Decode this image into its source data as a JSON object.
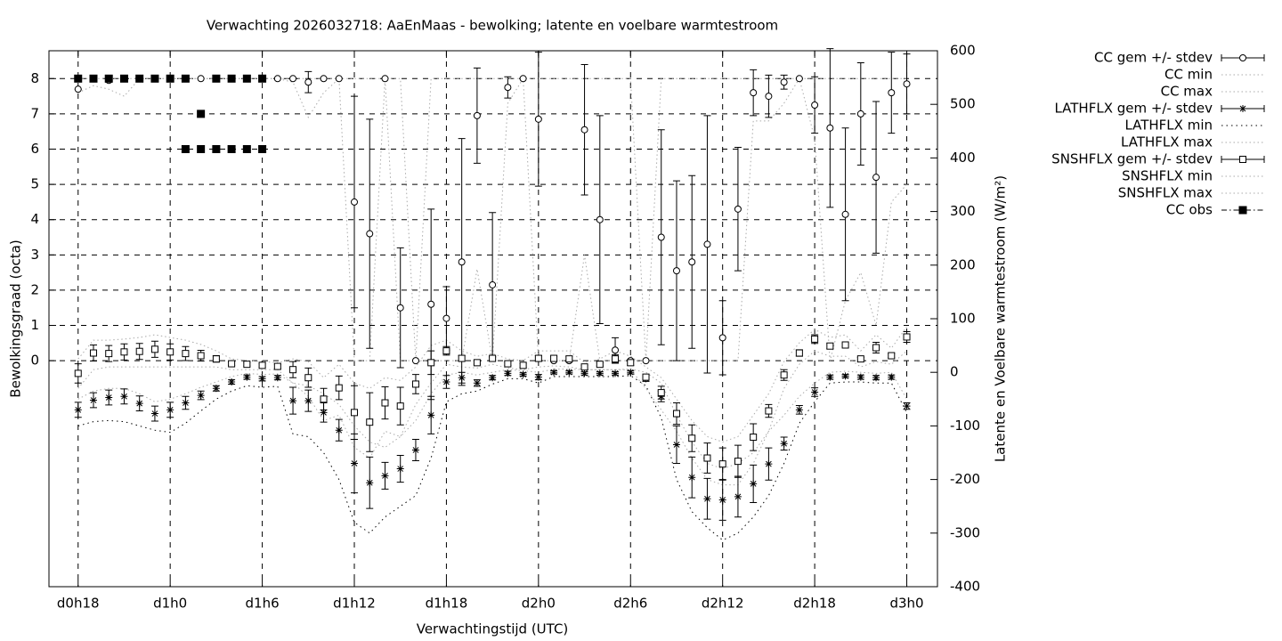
{
  "chart_data": {
    "type": "errorbar",
    "title": "Verwachting 2026032718: AaEnMaas - bewolking; latente en voelbare warmtestroom",
    "xlabel": "Verwachtingstijd (UTC)",
    "ylabel": "Bewolkingsgraad (octa)",
    "y2label": "Latente en Voelbare warmtestroom (W/m²)",
    "xlim": [
      -1.9,
      56
    ],
    "xticks": [
      {
        "value": 0,
        "label": "d0h18"
      },
      {
        "value": 6,
        "label": "d1h0"
      },
      {
        "value": 12,
        "label": "d1h6"
      },
      {
        "value": 18,
        "label": "d1h12"
      },
      {
        "value": 24,
        "label": "d1h18"
      },
      {
        "value": 30,
        "label": "d2h0"
      },
      {
        "value": 36,
        "label": "d2h6"
      },
      {
        "value": 42,
        "label": "d2h12"
      },
      {
        "value": 48,
        "label": "d2h18"
      },
      {
        "value": 54,
        "label": "d3h0"
      }
    ],
    "ylim": [
      -6.41,
      8.79
    ],
    "yticks": [
      0,
      1,
      2,
      3,
      4,
      5,
      6,
      7,
      8
    ],
    "y2lim": [
      -400,
      600
    ],
    "y2ticks": [
      -400,
      -300,
      -200,
      -100,
      0,
      100,
      200,
      300,
      400,
      500,
      600
    ],
    "grid": true,
    "legend": "outside-top-right",
    "x": [
      0,
      1,
      2,
      3,
      4,
      5,
      6,
      7,
      8,
      9,
      10,
      11,
      12,
      13,
      14,
      15,
      16,
      17,
      18,
      19,
      20,
      21,
      22,
      23,
      24,
      25,
      26,
      27,
      28,
      29,
      30,
      31,
      32,
      33,
      34,
      35,
      36,
      37,
      38,
      39,
      40,
      41,
      42,
      43,
      44,
      45,
      46,
      47,
      48,
      49,
      50,
      51,
      52,
      53,
      54
    ],
    "series": [
      {
        "name": "CC gem +/- stdev",
        "color": "#000000",
        "style": "errorbar",
        "marker": "circle",
        "values": [
          7.7,
          8,
          7.95,
          8,
          8,
          8,
          8,
          8,
          8,
          8,
          8,
          8,
          8,
          8,
          8,
          7.9,
          8,
          8,
          4.5,
          3.6,
          8,
          1.5,
          0,
          1.6,
          1.2,
          2.8,
          6.95,
          2.15,
          7.75,
          8,
          6.85,
          0,
          0,
          6.55,
          4.0,
          0.3,
          0,
          0,
          3.5,
          2.55,
          2.8,
          3.3,
          0.65,
          4.3,
          7.6,
          7.5,
          7.9,
          8,
          7.25,
          6.6,
          4.15,
          7.0,
          5.2,
          7.6,
          7.85
        ],
        "errors": [
          0,
          0,
          0.05,
          0,
          0,
          0,
          0,
          0,
          0,
          0,
          0,
          0,
          0,
          0,
          0,
          0.3,
          0,
          0,
          3,
          3.25,
          0,
          1.7,
          0,
          2.7,
          0.9,
          3.5,
          1.35,
          2.05,
          0.3,
          0,
          1.9,
          0,
          0,
          1.85,
          2.95,
          0.35,
          0,
          0,
          3.05,
          2.55,
          2.45,
          3.65,
          1.05,
          1.75,
          0.65,
          0.6,
          0.2,
          0,
          0.8,
          2.25,
          2.45,
          1.45,
          2.15,
          1.15,
          0.85
        ]
      },
      {
        "name": "CC min",
        "color": "#aaaaaa",
        "style": "dotted",
        "values": [
          7.6,
          7.8,
          7.7,
          7.5,
          8,
          8,
          8,
          8,
          8,
          8,
          8,
          8,
          8,
          8,
          7.9,
          6.9,
          7.6,
          8,
          0,
          0,
          8,
          0,
          0,
          0,
          0,
          0,
          2.6,
          0,
          7.3,
          8,
          0,
          0,
          0,
          3,
          0,
          0,
          0,
          0,
          0,
          0,
          0,
          0,
          0,
          0,
          6.8,
          6.8,
          7.3,
          8,
          6.3,
          0,
          1.7,
          2.5,
          1,
          4.5,
          5
        ]
      },
      {
        "name": "CC max",
        "color": "#aaaaaa",
        "style": "dotted",
        "values": [
          8,
          8,
          8,
          8,
          8,
          8,
          8,
          8,
          8,
          8,
          8,
          8,
          8,
          8,
          8,
          8,
          8,
          8,
          8,
          8,
          8,
          8,
          0,
          8,
          8,
          8,
          8,
          8,
          8,
          8,
          8,
          8,
          8,
          8,
          8,
          8,
          8,
          0,
          8,
          8,
          8,
          8,
          8,
          8,
          8,
          8,
          8,
          8,
          8,
          8,
          8,
          8,
          8,
          8,
          8
        ]
      },
      {
        "name": "LATHFLX gem +/- stdev",
        "color": "#000000",
        "style": "errorbar",
        "marker": "asterisk",
        "axis": "y2",
        "values": [
          -70,
          -52,
          -47,
          -45,
          -58,
          -77,
          -70,
          -57,
          -43,
          -30,
          -18,
          -9,
          -12,
          -10,
          -53,
          -53,
          -75,
          -108,
          -170,
          -206,
          -193,
          -180,
          -145,
          -80,
          -18,
          -10,
          -20,
          -10,
          -2,
          -4,
          -9,
          0,
          0,
          -2,
          -2,
          -2,
          0,
          -12,
          -45,
          -135,
          -196,
          -236,
          -238,
          -232,
          -208,
          -171,
          -133,
          -70,
          -37,
          -9,
          -7,
          -9,
          -10,
          -9,
          -63
        ],
        "errors": [
          14,
          14,
          14,
          14,
          14,
          14,
          14,
          12,
          8,
          5,
          4,
          4,
          4,
          4,
          25,
          20,
          18,
          20,
          55,
          48,
          25,
          25,
          20,
          35,
          12,
          10,
          6,
          4,
          4,
          3,
          5,
          3,
          3,
          3,
          3,
          3,
          3,
          5,
          10,
          35,
          38,
          38,
          38,
          38,
          35,
          30,
          12,
          8,
          8,
          4,
          3,
          4,
          4,
          4,
          6
        ]
      },
      {
        "name": "LATHFLX min",
        "color": "#000000",
        "style": "dotted",
        "axis": "y2",
        "values": [
          -100,
          -92,
          -90,
          -92,
          -100,
          -108,
          -112,
          -95,
          -72,
          -50,
          -35,
          -25,
          -28,
          -26,
          -115,
          -120,
          -150,
          -200,
          -280,
          -300,
          -270,
          -250,
          -230,
          -160,
          -55,
          -40,
          -35,
          -22,
          -12,
          -12,
          -20,
          -8,
          -8,
          -8,
          -8,
          -8,
          -6,
          -25,
          -85,
          -200,
          -260,
          -290,
          -313,
          -300,
          -270,
          -230,
          -170,
          -95,
          -55,
          -20,
          -18,
          -18,
          -20,
          -20,
          -75
        ]
      },
      {
        "name": "LATHFLX max",
        "color": "#aaaaaa",
        "style": "dotted",
        "axis": "y2",
        "values": [
          -50,
          -35,
          -30,
          -30,
          -40,
          -55,
          -50,
          -40,
          -28,
          -18,
          -8,
          -2,
          -4,
          -3,
          -20,
          -25,
          -40,
          -60,
          -100,
          -130,
          -140,
          -120,
          -90,
          -40,
          -5,
          0,
          -5,
          0,
          5,
          3,
          0,
          6,
          6,
          5,
          5,
          5,
          6,
          0,
          -20,
          -80,
          -130,
          -170,
          -180,
          -170,
          -150,
          -110,
          -80,
          -45,
          -20,
          0,
          2,
          0,
          -2,
          0,
          -50
        ]
      },
      {
        "name": "SNSHFLX gem +/- stdev",
        "color": "#000000",
        "style": "errorbar",
        "marker": "square",
        "axis": "y2",
        "values": [
          -2,
          36,
          35,
          38,
          39,
          43,
          38,
          35,
          31,
          25,
          16,
          15,
          13,
          11,
          5,
          -10,
          -50,
          -29,
          -75,
          -93,
          -57,
          -63,
          -22,
          18,
          40,
          26,
          18,
          26,
          16,
          13,
          26,
          26,
          25,
          10,
          15,
          25,
          18,
          -9,
          -38,
          -77,
          -123,
          -160,
          -171,
          -166,
          -121,
          -72,
          -5,
          36,
          62,
          49,
          51,
          25,
          46,
          31,
          66
        ],
        "errors": [
          18,
          15,
          15,
          15,
          15,
          15,
          15,
          13,
          10,
          6,
          3,
          3,
          3,
          4,
          15,
          18,
          20,
          22,
          50,
          55,
          30,
          35,
          18,
          22,
          8,
          5,
          3,
          3,
          3,
          4,
          5,
          4,
          5,
          3,
          3,
          8,
          5,
          5,
          12,
          20,
          25,
          28,
          30,
          30,
          25,
          12,
          10,
          6,
          8,
          5,
          3,
          3,
          10,
          4,
          10
        ]
      },
      {
        "name": "SNSHFLX min",
        "color": "#aaaaaa",
        "style": "dotted",
        "axis": "y2",
        "values": [
          -30,
          5,
          10,
          10,
          10,
          10,
          10,
          10,
          10,
          10,
          5,
          5,
          5,
          5,
          -20,
          -45,
          -90,
          -80,
          -140,
          -160,
          -110,
          -120,
          -60,
          -20,
          15,
          10,
          8,
          15,
          8,
          5,
          10,
          12,
          10,
          5,
          5,
          5,
          5,
          -30,
          -70,
          -110,
          -160,
          -200,
          -210,
          -210,
          -170,
          -110,
          -30,
          15,
          40,
          30,
          30,
          10,
          20,
          15,
          40
        ]
      },
      {
        "name": "SNSHFLX max",
        "color": "#aaaaaa",
        "style": "dotted",
        "axis": "y2",
        "values": [
          25,
          60,
          60,
          62,
          65,
          70,
          65,
          60,
          52,
          40,
          25,
          22,
          20,
          18,
          25,
          20,
          -10,
          15,
          -20,
          -30,
          -10,
          -15,
          10,
          50,
          60,
          40,
          30,
          35,
          25,
          22,
          40,
          40,
          40,
          18,
          25,
          40,
          30,
          10,
          -10,
          -50,
          -90,
          -120,
          -130,
          -120,
          -80,
          -40,
          20,
          55,
          80,
          65,
          70,
          40,
          70,
          45,
          85
        ]
      },
      {
        "name": "CC obs",
        "color": "#000000",
        "style": "points",
        "marker": "filledsquare",
        "x": [
          0,
          1,
          2,
          3,
          4,
          5,
          6,
          7,
          8,
          9,
          10,
          11,
          12,
          7,
          8,
          9,
          10,
          11,
          12
        ],
        "values": [
          8,
          8,
          8,
          8,
          8,
          8,
          8,
          8,
          7,
          8,
          8,
          8,
          8,
          6,
          6,
          6,
          6,
          6,
          6
        ]
      }
    ]
  }
}
